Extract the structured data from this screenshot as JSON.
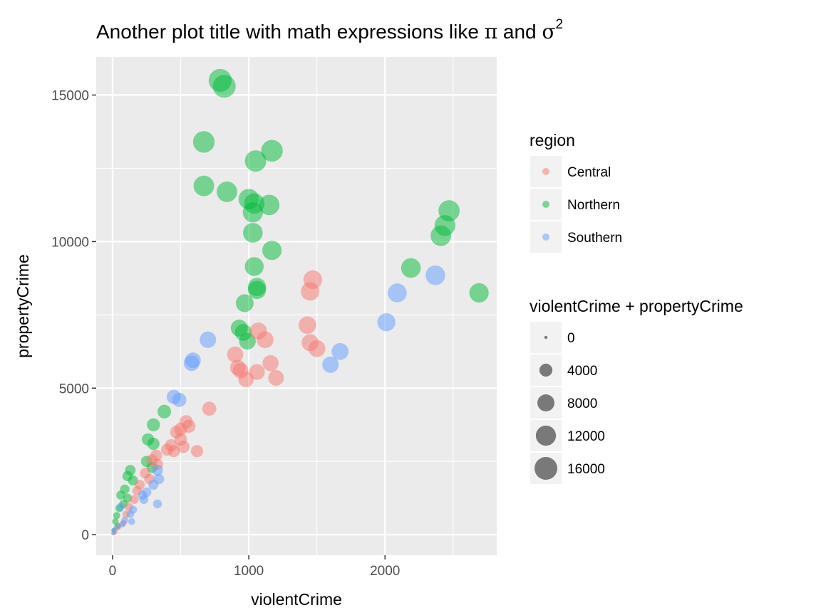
{
  "chart_data": {
    "type": "scatter",
    "title": "Another plot title with math expressions like π and σ²",
    "title_parts": {
      "text1": "Another plot title with math expressions like ",
      "pi": "π",
      "and": " and ",
      "sigma": "σ",
      "sup": "2"
    },
    "xlabel": "violentCrime",
    "ylabel": "propertyCrime",
    "xlim": [
      -120,
      2820
    ],
    "ylim": [
      -700,
      16300
    ],
    "x_ticks": [
      0,
      1000,
      2000
    ],
    "x_tick_labels": [
      "0",
      "1000",
      "2000"
    ],
    "y_ticks": [
      0,
      5000,
      10000,
      15000
    ],
    "y_tick_labels": [
      "0",
      "5000",
      "10000",
      "15000"
    ],
    "grid": true,
    "point_alpha": 0.5,
    "colors": {
      "Central": "#F8766D",
      "Northern": "#00BA38",
      "Southern": "#619CFF",
      "panel": "#EBEBEB",
      "grid": "#FFFFFF",
      "size_key": "#000000"
    },
    "legend": {
      "placement": "right",
      "color_title": "region",
      "color_entries": [
        "Central",
        "Northern",
        "Southern"
      ],
      "size_title": "violentCrime + propertyCrime",
      "size_breaks": [
        0,
        4000,
        8000,
        12000,
        16000
      ],
      "size_labels": [
        "0",
        "4000",
        "8000",
        "12000",
        "16000"
      ]
    },
    "series": [
      {
        "name": "Northern",
        "points": [
          [
            790,
            15500
          ],
          [
            820,
            15300
          ],
          [
            670,
            13400
          ],
          [
            1170,
            13100
          ],
          [
            1050,
            12750
          ],
          [
            670,
            11900
          ],
          [
            840,
            11700
          ],
          [
            1000,
            11450
          ],
          [
            1040,
            11300
          ],
          [
            1150,
            11250
          ],
          [
            1030,
            11000
          ],
          [
            1030,
            10300
          ],
          [
            1170,
            9700
          ],
          [
            1040,
            9150
          ],
          [
            1060,
            8450
          ],
          [
            1060,
            8350
          ],
          [
            970,
            7900
          ],
          [
            930,
            7050
          ],
          [
            960,
            6900
          ],
          [
            990,
            6600
          ],
          [
            2470,
            11050
          ],
          [
            2440,
            10550
          ],
          [
            2410,
            10200
          ],
          [
            2190,
            9100
          ],
          [
            2690,
            8250
          ],
          [
            380,
            4200
          ],
          [
            300,
            3750
          ],
          [
            260,
            3250
          ],
          [
            300,
            3100
          ],
          [
            250,
            2500
          ],
          [
            290,
            2300
          ],
          [
            130,
            2200
          ],
          [
            110,
            2000
          ],
          [
            150,
            1850
          ],
          [
            90,
            1550
          ],
          [
            60,
            1350
          ],
          [
            110,
            1250
          ],
          [
            80,
            1050
          ],
          [
            50,
            900
          ],
          [
            30,
            650
          ],
          [
            20,
            450
          ],
          [
            40,
            300
          ],
          [
            10,
            150
          ]
        ]
      },
      {
        "name": "Central",
        "points": [
          [
            1470,
            8700
          ],
          [
            1450,
            8300
          ],
          [
            1430,
            7150
          ],
          [
            1070,
            6950
          ],
          [
            1120,
            6650
          ],
          [
            1450,
            6550
          ],
          [
            1500,
            6350
          ],
          [
            900,
            6150
          ],
          [
            940,
            5600
          ],
          [
            920,
            5700
          ],
          [
            1060,
            5550
          ],
          [
            1160,
            5850
          ],
          [
            1200,
            5350
          ],
          [
            980,
            5300
          ],
          [
            710,
            4300
          ],
          [
            540,
            3850
          ],
          [
            500,
            3600
          ],
          [
            470,
            3500
          ],
          [
            560,
            3700
          ],
          [
            500,
            3250
          ],
          [
            430,
            3050
          ],
          [
            450,
            2850
          ],
          [
            520,
            3000
          ],
          [
            400,
            2900
          ],
          [
            620,
            2850
          ],
          [
            320,
            2700
          ],
          [
            290,
            2550
          ],
          [
            330,
            2400
          ],
          [
            240,
            2100
          ],
          [
            270,
            1900
          ],
          [
            200,
            1700
          ],
          [
            180,
            1500
          ],
          [
            160,
            1200
          ],
          [
            120,
            950
          ],
          [
            100,
            700
          ],
          [
            80,
            400
          ],
          [
            40,
            250
          ],
          [
            20,
            100
          ],
          [
            10,
            50
          ]
        ]
      },
      {
        "name": "Southern",
        "points": [
          [
            2370,
            8850
          ],
          [
            2090,
            8250
          ],
          [
            2010,
            7250
          ],
          [
            1670,
            6250
          ],
          [
            1600,
            5800
          ],
          [
            700,
            6650
          ],
          [
            590,
            5950
          ],
          [
            580,
            5850
          ],
          [
            450,
            4700
          ],
          [
            490,
            4600
          ],
          [
            330,
            2200
          ],
          [
            340,
            1900
          ],
          [
            300,
            1700
          ],
          [
            250,
            1450
          ],
          [
            220,
            1350
          ],
          [
            330,
            1050
          ],
          [
            230,
            1200
          ],
          [
            150,
            850
          ],
          [
            130,
            700
          ],
          [
            60,
            950
          ],
          [
            90,
            500
          ],
          [
            140,
            450
          ],
          [
            70,
            350
          ],
          [
            30,
            250
          ],
          [
            10,
            150
          ],
          [
            5,
            50
          ]
        ]
      }
    ]
  }
}
